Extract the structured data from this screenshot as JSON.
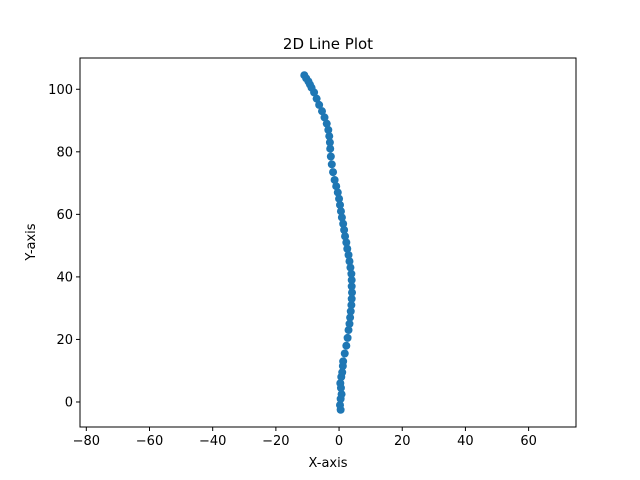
{
  "chart_data": {
    "type": "scatter",
    "title": "2D Line Plot",
    "xlabel": "X-axis",
    "ylabel": "Y-axis",
    "xlim": [
      -82,
      75
    ],
    "ylim": [
      -8,
      110
    ],
    "xticks": [
      -80,
      -60,
      -40,
      -20,
      0,
      20,
      40,
      60
    ],
    "yticks": [
      0,
      20,
      40,
      60,
      80,
      100
    ],
    "xtick_labels": [
      "−80",
      "−60",
      "−40",
      "−20",
      "0",
      "20",
      "40",
      "60"
    ],
    "ytick_labels": [
      "0",
      "20",
      "40",
      "60",
      "80",
      "100"
    ],
    "grid": false,
    "series": [
      {
        "color": "#1f77b4",
        "x": [
          0.5,
          0.3,
          0.5,
          0.8,
          0.6,
          0.4,
          0.7,
          1.0,
          1.2,
          1.3,
          1.8,
          2.3,
          2.7,
          3.0,
          3.3,
          3.5,
          3.7,
          3.9,
          4.0,
          4.1,
          4.0,
          4.0,
          3.9,
          3.6,
          3.3,
          3.0,
          2.6,
          2.3,
          1.9,
          1.6,
          1.3,
          0.9,
          0.6,
          0.3,
          0.0,
          -0.4,
          -0.9,
          -1.4,
          -1.9,
          -2.3,
          -2.6,
          -2.8,
          -2.9,
          -3.1,
          -3.4,
          -3.9,
          -4.6,
          -5.4,
          -6.3,
          -7.1,
          -7.9,
          -8.7,
          -9.2,
          -9.7,
          -10.4,
          -11.0
        ],
        "y": [
          -2.5,
          -1.0,
          1.0,
          2.5,
          4.5,
          6.0,
          8.0,
          9.5,
          11.5,
          13.0,
          15.5,
          18.0,
          20.5,
          23.0,
          25.0,
          27.0,
          29.0,
          31.0,
          33.0,
          35.0,
          37.0,
          39.0,
          41.0,
          43.0,
          45.0,
          47.0,
          49.0,
          51.0,
          53.0,
          55.0,
          57.0,
          59.0,
          61.0,
          63.0,
          65.0,
          67.0,
          69.0,
          71.0,
          73.5,
          76.0,
          78.5,
          81.0,
          83.0,
          85.0,
          87.0,
          89.0,
          91.0,
          93.0,
          95.0,
          97.0,
          99.0,
          100.5,
          101.5,
          102.5,
          103.5,
          104.5
        ]
      }
    ]
  }
}
